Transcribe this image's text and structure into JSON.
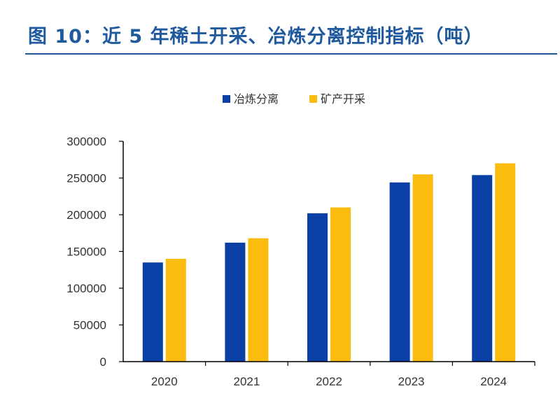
{
  "title": "图 10：近 5 年稀土开采、冶炼分离控制指标（吨）",
  "colors": {
    "title": "#1f5a9e",
    "axis": "#000000"
  },
  "chart_data": {
    "type": "bar",
    "categories": [
      "2020",
      "2021",
      "2022",
      "2023",
      "2024"
    ],
    "series": [
      {
        "name": "冶炼分离",
        "color": "#0a3fa6",
        "values": [
          135000,
          162000,
          202000,
          244000,
          254000
        ]
      },
      {
        "name": "矿产开采",
        "color": "#fbbc0f",
        "values": [
          140000,
          168000,
          210000,
          255000,
          270000
        ]
      }
    ],
    "ylim": [
      0,
      300000
    ],
    "yticks": [
      0,
      50000,
      100000,
      150000,
      200000,
      250000,
      300000
    ],
    "legend_position": "top-center",
    "grid": false
  }
}
